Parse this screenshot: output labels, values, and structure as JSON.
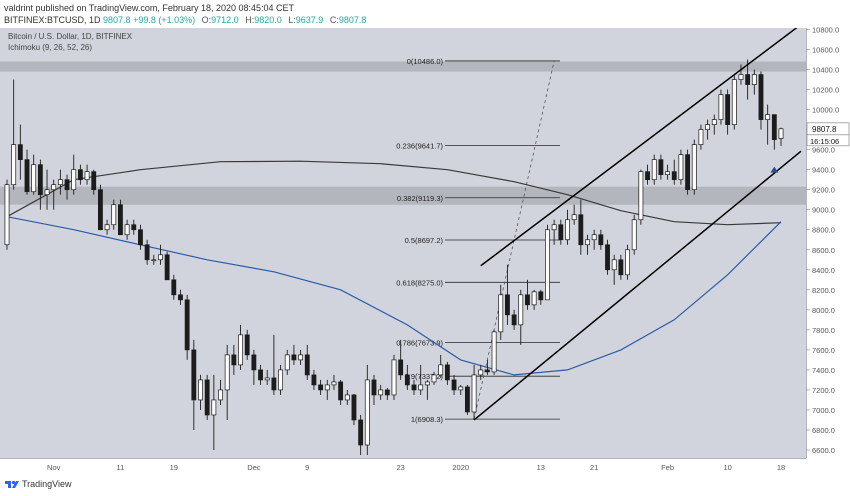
{
  "header": {
    "published_line": "valdrint published on TradingView.com, February 18, 2020 08:45:04 CET",
    "symbol": "BITFINEX:BTCUSD, 1D",
    "price": "9807.8",
    "change": "+99.8 (+1.03%)",
    "o_label": "O:",
    "o_value": "9712.0",
    "h_label": "H:",
    "h_value": "9820.0",
    "l_label": "L:",
    "l_value": "9637.9",
    "c_label": "C:",
    "c_value": "9807.8"
  },
  "legend": {
    "title": "Bitcoin / U.S. Dollar, 1D, BITFINEX",
    "indicator": "Ichimoku (9, 26, 52, 26)"
  },
  "footer": {
    "brand": "TradingView"
  },
  "colors": {
    "up": "#ffffff",
    "down": "#1c1c1c",
    "ma_slow": "#3a3a3a",
    "ma_fast": "#2a5caa",
    "resistance_band": "#a9acb3",
    "arrow": "#2a4d8f"
  },
  "chart_data": {
    "type": "candlestick",
    "title": "Bitcoin / U.S. Dollar, 1D, BITFINEX",
    "ylim": [
      6500,
      11000
    ],
    "y_ticks": [
      6600,
      6800,
      7000,
      7200,
      7400,
      7600,
      7800,
      8000,
      8200,
      8400,
      8600,
      8800,
      9000,
      9200,
      9400,
      9600,
      9800,
      10000,
      10200,
      10400,
      10600,
      10800
    ],
    "y_tick_labels": [
      "6600.0",
      "6800.0",
      "7000.0",
      "7200.0",
      "7400.0",
      "7600.0",
      "7800.0",
      "8000.0",
      "8200.0",
      "8400.0",
      "8600.0",
      "8800.0",
      "9000.0",
      "9200.0",
      "9400.0",
      "9600.0",
      "9800.0",
      "10000.0",
      "10200.0",
      "10400.0",
      "10600.0",
      "10800.0"
    ],
    "x_ticks": [
      {
        "label": "Nov",
        "date": "2019-11-01"
      },
      {
        "label": "11",
        "date": "2019-11-11"
      },
      {
        "label": "19",
        "date": "2019-11-19"
      },
      {
        "label": "Dec",
        "date": "2019-12-01"
      },
      {
        "label": "9",
        "date": "2019-12-09"
      },
      {
        "label": "23",
        "date": "2019-12-23"
      },
      {
        "label": "2020",
        "date": "2020-01-01"
      },
      {
        "label": "13",
        "date": "2020-01-13"
      },
      {
        "label": "21",
        "date": "2020-01-21"
      },
      {
        "label": "Feb",
        "date": "2020-02-01"
      },
      {
        "label": "10",
        "date": "2020-02-10"
      },
      {
        "label": "18",
        "date": "2020-02-18"
      }
    ],
    "current_price": "9807.8",
    "countdown": "16:15:06",
    "resistance_zones": [
      [
        10380,
        10480
      ],
      [
        9050,
        9230
      ]
    ],
    "fib_levels": [
      {
        "label": "0(10486.0)",
        "value": 10486.0
      },
      {
        "label": "0.236(9641.7)",
        "value": 9641.7
      },
      {
        "label": "0.382(9119.3)",
        "value": 9119.3
      },
      {
        "label": "0.5(8697.2)",
        "value": 8697.2
      },
      {
        "label": "0.618(8275.0)",
        "value": 8275.0
      },
      {
        "label": "0.786(7673.9)",
        "value": 7673.9
      },
      {
        "label": "0.9(7337.2)",
        "value": 7337.2
      },
      {
        "label": "1(6908.3)",
        "value": 6908.3
      }
    ],
    "channel_upper": [
      {
        "x": "2020-01-04",
        "y": 8440
      },
      {
        "x": "2020-02-18",
        "y": 10700
      }
    ],
    "channel_lower": [
      {
        "x": "2020-01-03",
        "y": 6900
      },
      {
        "x": "2020-02-18",
        "y": 9420
      }
    ],
    "fib_swing": [
      {
        "x": "2020-01-03",
        "y": 6908
      },
      {
        "x": "2020-01-15",
        "y": 10486
      }
    ],
    "series": [
      {
        "name": "slow",
        "points": [
          [
            "2019-10-25",
            8930
          ],
          [
            "2019-11-04",
            9300
          ],
          [
            "2019-11-14",
            9400
          ],
          [
            "2019-11-26",
            9480
          ],
          [
            "2019-12-08",
            9485
          ],
          [
            "2019-12-20",
            9460
          ],
          [
            "2019-12-30",
            9400
          ],
          [
            "2020-01-09",
            9280
          ],
          [
            "2020-01-17",
            9150
          ],
          [
            "2020-01-25",
            8990
          ],
          [
            "2020-02-02",
            8880
          ],
          [
            "2020-02-10",
            8850
          ],
          [
            "2020-02-18",
            8870
          ]
        ]
      },
      {
        "name": "fast",
        "points": [
          [
            "2019-10-25",
            8930
          ],
          [
            "2019-11-04",
            8800
          ],
          [
            "2019-11-14",
            8650
          ],
          [
            "2019-11-24",
            8500
          ],
          [
            "2019-12-04",
            8380
          ],
          [
            "2019-12-14",
            8200
          ],
          [
            "2019-12-24",
            7850
          ],
          [
            "2020-01-01",
            7500
          ],
          [
            "2020-01-09",
            7350
          ],
          [
            "2020-01-17",
            7400
          ],
          [
            "2020-01-25",
            7600
          ],
          [
            "2020-02-02",
            7900
          ],
          [
            "2020-02-10",
            8350
          ],
          [
            "2020-02-18",
            8880
          ]
        ]
      }
    ],
    "candles": [
      [
        "2019-10-25",
        8650,
        9300,
        8600,
        9250
      ],
      [
        "2019-10-26",
        9250,
        10300,
        9200,
        9650
      ],
      [
        "2019-10-27",
        9650,
        9850,
        9300,
        9500
      ],
      [
        "2019-10-28",
        9500,
        9600,
        9150,
        9180
      ],
      [
        "2019-10-29",
        9180,
        9550,
        9150,
        9450
      ],
      [
        "2019-10-30",
        9450,
        9500,
        9000,
        9150
      ],
      [
        "2019-10-31",
        9150,
        9400,
        9000,
        9200
      ],
      [
        "2019-11-01",
        9200,
        9300,
        9000,
        9250
      ],
      [
        "2019-11-02",
        9250,
        9400,
        9150,
        9300
      ],
      [
        "2019-11-03",
        9300,
        9350,
        9100,
        9200
      ],
      [
        "2019-11-04",
        9200,
        9550,
        9150,
        9400
      ],
      [
        "2019-11-05",
        9400,
        9450,
        9250,
        9300
      ],
      [
        "2019-11-06",
        9300,
        9450,
        9250,
        9380
      ],
      [
        "2019-11-07",
        9380,
        9400,
        9150,
        9200
      ],
      [
        "2019-11-08",
        9200,
        9250,
        8800,
        8800
      ],
      [
        "2019-11-09",
        8800,
        8900,
        8750,
        8850
      ],
      [
        "2019-11-10",
        8850,
        9100,
        8800,
        9050
      ],
      [
        "2019-11-11",
        9050,
        9100,
        8750,
        8750
      ],
      [
        "2019-11-12",
        8750,
        8900,
        8700,
        8850
      ],
      [
        "2019-11-13",
        8850,
        8900,
        8750,
        8800
      ],
      [
        "2019-11-14",
        8800,
        8850,
        8600,
        8650
      ],
      [
        "2019-11-15",
        8650,
        8700,
        8450,
        8500
      ],
      [
        "2019-11-16",
        8500,
        8550,
        8450,
        8500
      ],
      [
        "2019-11-17",
        8500,
        8650,
        8450,
        8550
      ],
      [
        "2019-11-18",
        8550,
        8580,
        8300,
        8300
      ],
      [
        "2019-11-19",
        8300,
        8350,
        8100,
        8150
      ],
      [
        "2019-11-20",
        8150,
        8200,
        8050,
        8100
      ],
      [
        "2019-11-21",
        8100,
        8150,
        7500,
        7600
      ],
      [
        "2019-11-22",
        7600,
        7700,
        6800,
        7100
      ],
      [
        "2019-11-23",
        7100,
        7350,
        7000,
        7300
      ],
      [
        "2019-11-24",
        7300,
        7350,
        6900,
        6950
      ],
      [
        "2019-11-25",
        6950,
        7350,
        6600,
        7100
      ],
      [
        "2019-11-26",
        7100,
        7300,
        7050,
        7200
      ],
      [
        "2019-11-27",
        7200,
        7650,
        6900,
        7550
      ],
      [
        "2019-11-28",
        7550,
        7650,
        7350,
        7450
      ],
      [
        "2019-11-29",
        7450,
        7850,
        7400,
        7750
      ],
      [
        "2019-11-30",
        7750,
        7800,
        7500,
        7550
      ],
      [
        "2019-12-01",
        7550,
        7600,
        7250,
        7400
      ],
      [
        "2019-12-02",
        7400,
        7450,
        7250,
        7300
      ],
      [
        "2019-12-03",
        7300,
        7400,
        7250,
        7320
      ],
      [
        "2019-12-04",
        7320,
        7750,
        7150,
        7200
      ],
      [
        "2019-12-05",
        7200,
        7450,
        7150,
        7400
      ],
      [
        "2019-12-06",
        7400,
        7600,
        7350,
        7550
      ],
      [
        "2019-12-07",
        7550,
        7650,
        7450,
        7500
      ],
      [
        "2019-12-08",
        7500,
        7600,
        7450,
        7550
      ],
      [
        "2019-12-09",
        7550,
        7650,
        7300,
        7350
      ],
      [
        "2019-12-10",
        7350,
        7400,
        7200,
        7250
      ],
      [
        "2019-12-11",
        7250,
        7300,
        7150,
        7200
      ],
      [
        "2019-12-12",
        7200,
        7300,
        7100,
        7250
      ],
      [
        "2019-12-13",
        7250,
        7350,
        7200,
        7280
      ],
      [
        "2019-12-14",
        7280,
        7300,
        7050,
        7100
      ],
      [
        "2019-12-15",
        7100,
        7200,
        7050,
        7150
      ],
      [
        "2019-12-16",
        7150,
        7160,
        6850,
        6900
      ],
      [
        "2019-12-17",
        6900,
        6950,
        6550,
        6650
      ],
      [
        "2019-12-18",
        6650,
        7450,
        6550,
        7300
      ],
      [
        "2019-12-19",
        7300,
        7350,
        7050,
        7150
      ],
      [
        "2019-12-20",
        7150,
        7250,
        7100,
        7200
      ],
      [
        "2019-12-21",
        7200,
        7220,
        7100,
        7150
      ],
      [
        "2019-12-22",
        7150,
        7550,
        7100,
        7500
      ],
      [
        "2019-12-23",
        7500,
        7700,
        7300,
        7350
      ],
      [
        "2019-12-24",
        7350,
        7450,
        7200,
        7250
      ],
      [
        "2019-12-25",
        7250,
        7300,
        7150,
        7200
      ],
      [
        "2019-12-26",
        7200,
        7450,
        7150,
        7250
      ],
      [
        "2019-12-27",
        7250,
        7300,
        7100,
        7280
      ],
      [
        "2019-12-28",
        7280,
        7380,
        7250,
        7350
      ],
      [
        "2019-12-29",
        7350,
        7550,
        7320,
        7450
      ],
      [
        "2019-12-30",
        7450,
        7480,
        7250,
        7300
      ],
      [
        "2019-12-31",
        7300,
        7350,
        7150,
        7200
      ],
      [
        "2020-01-01",
        7200,
        7250,
        7150,
        7230
      ],
      [
        "2020-01-02",
        7230,
        7250,
        6950,
        6980
      ],
      [
        "2020-01-03",
        6980,
        7450,
        6900,
        7350
      ],
      [
        "2020-01-04",
        7350,
        7450,
        7300,
        7400
      ],
      [
        "2020-01-05",
        7400,
        7500,
        7350,
        7380
      ],
      [
        "2020-01-06",
        7380,
        7800,
        7350,
        7780
      ],
      [
        "2020-01-07",
        7780,
        8250,
        7700,
        8150
      ],
      [
        "2020-01-08",
        8150,
        8450,
        7850,
        7950
      ],
      [
        "2020-01-09",
        7950,
        8000,
        7800,
        7850
      ],
      [
        "2020-01-10",
        7850,
        8200,
        7650,
        8150
      ],
      [
        "2020-01-11",
        8150,
        8300,
        8000,
        8050
      ],
      [
        "2020-01-12",
        8050,
        8200,
        8000,
        8180
      ],
      [
        "2020-01-13",
        8180,
        8200,
        8050,
        8100
      ],
      [
        "2020-01-14",
        8100,
        8850,
        8100,
        8800
      ],
      [
        "2020-01-15",
        8800,
        8900,
        8650,
        8850
      ],
      [
        "2020-01-16",
        8850,
        8900,
        8650,
        8700
      ],
      [
        "2020-01-17",
        8700,
        9000,
        8650,
        8900
      ],
      [
        "2020-01-18",
        8900,
        9050,
        8850,
        8950
      ],
      [
        "2020-01-19",
        8950,
        9100,
        8550,
        8650
      ],
      [
        "2020-01-20",
        8650,
        8750,
        8550,
        8700
      ],
      [
        "2020-01-21",
        8700,
        8800,
        8600,
        8750
      ],
      [
        "2020-01-22",
        8750,
        8800,
        8600,
        8650
      ],
      [
        "2020-01-23",
        8650,
        8700,
        8350,
        8400
      ],
      [
        "2020-01-24",
        8400,
        8550,
        8250,
        8500
      ],
      [
        "2020-01-25",
        8500,
        8550,
        8300,
        8350
      ],
      [
        "2020-01-26",
        8350,
        8650,
        8300,
        8600
      ],
      [
        "2020-01-27",
        8600,
        8950,
        8550,
        8900
      ],
      [
        "2020-01-28",
        8900,
        9400,
        8850,
        9380
      ],
      [
        "2020-01-29",
        9380,
        9450,
        9250,
        9300
      ],
      [
        "2020-01-30",
        9300,
        9550,
        9250,
        9500
      ],
      [
        "2020-01-31",
        9500,
        9550,
        9300,
        9350
      ],
      [
        "2020-02-01",
        9350,
        9450,
        9300,
        9380
      ],
      [
        "2020-02-02",
        9380,
        9500,
        9250,
        9300
      ],
      [
        "2020-02-03",
        9300,
        9600,
        9250,
        9550
      ],
      [
        "2020-02-04",
        9550,
        9600,
        9150,
        9200
      ],
      [
        "2020-02-05",
        9200,
        9700,
        9150,
        9650
      ],
      [
        "2020-02-06",
        9650,
        9850,
        9600,
        9800
      ],
      [
        "2020-02-07",
        9800,
        9900,
        9700,
        9850
      ],
      [
        "2020-02-08",
        9850,
        9950,
        9750,
        9900
      ],
      [
        "2020-02-09",
        9900,
        10200,
        9850,
        10150
      ],
      [
        "2020-02-10",
        10150,
        10200,
        9750,
        9850
      ],
      [
        "2020-02-11",
        9850,
        10350,
        9800,
        10300
      ],
      [
        "2020-02-12",
        10300,
        10450,
        10250,
        10350
      ],
      [
        "2020-02-13",
        10350,
        10500,
        10100,
        10250
      ],
      [
        "2020-02-14",
        10250,
        10400,
        10150,
        10350
      ],
      [
        "2020-02-15",
        10350,
        10380,
        9800,
        9900
      ],
      [
        "2020-02-16",
        9900,
        10050,
        9650,
        9950
      ],
      [
        "2020-02-17",
        9950,
        9950,
        9600,
        9700
      ],
      [
        "2020-02-18",
        9712,
        9820,
        9638,
        9808
      ]
    ]
  }
}
